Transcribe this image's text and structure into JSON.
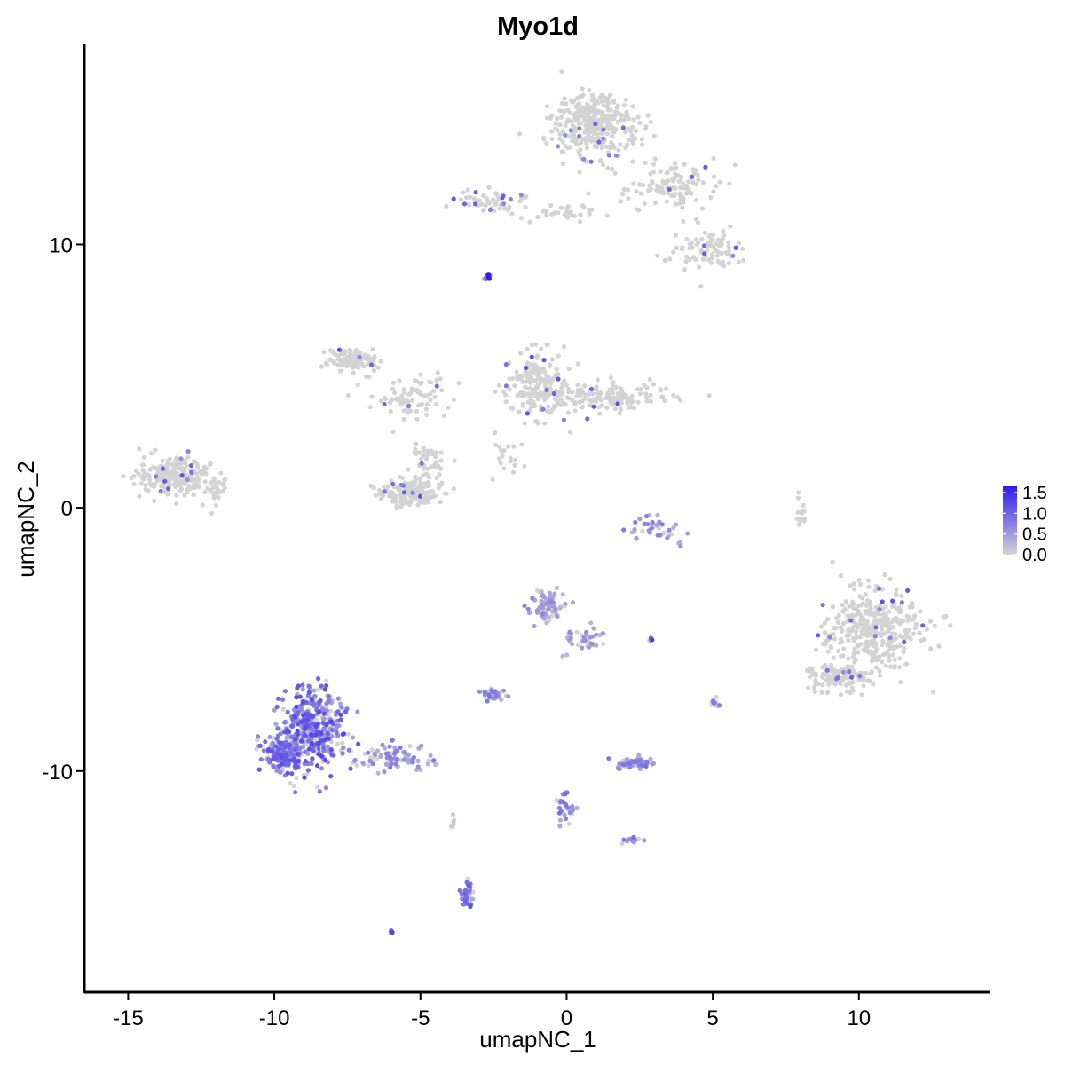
{
  "chart_data": {
    "type": "scatter",
    "title": "Myo1d",
    "xlabel": "umapNC_1",
    "ylabel": "umapNC_2",
    "xlim": [
      -16.5,
      14.5
    ],
    "ylim": [
      -18.4,
      17.6
    ],
    "x_ticks": [
      -15,
      -10,
      -5,
      0,
      5,
      10
    ],
    "x_tick_labels": [
      "-15",
      "-10",
      "-5",
      "0",
      "5",
      "10"
    ],
    "y_ticks": [
      -10,
      0,
      10
    ],
    "y_tick_labels": [
      "-10",
      "0",
      "10"
    ],
    "grid": false,
    "legend": {
      "position": "right",
      "type": "colorbar",
      "ticks": [
        0.0,
        0.5,
        1.0,
        1.5
      ],
      "labels": [
        "0.0",
        "0.5",
        "1.0",
        "1.5"
      ],
      "range": [
        0,
        1.65
      ]
    },
    "color_low": "#d3d3d3",
    "color_high": "#2f1bf0",
    "clusters": [
      {
        "center": [
          1.0,
          14.6
        ],
        "spread": [
          1.2,
          1.1
        ],
        "n": 330,
        "expr": 0.02
      },
      {
        "center": [
          3.6,
          12.3
        ],
        "spread": [
          1.2,
          0.9
        ],
        "n": 110,
        "expr": 0.02
      },
      {
        "center": [
          4.9,
          9.8
        ],
        "spread": [
          1.0,
          0.6
        ],
        "n": 90,
        "expr": 0.02
      },
      {
        "center": [
          -2.6,
          11.6
        ],
        "spread": [
          1.3,
          0.3
        ],
        "n": 50,
        "expr": 0.03
      },
      {
        "center": [
          -0.2,
          11.2
        ],
        "spread": [
          1.1,
          0.25
        ],
        "n": 35,
        "expr": 0.02
      },
      {
        "center": [
          -2.75,
          8.7
        ],
        "spread": [
          0.15,
          0.1
        ],
        "n": 10,
        "expr": 1.3
      },
      {
        "center": [
          -7.2,
          5.6
        ],
        "spread": [
          0.8,
          0.4
        ],
        "n": 110,
        "expr": 0.02
      },
      {
        "center": [
          -5.3,
          4.2
        ],
        "spread": [
          1.3,
          0.7
        ],
        "n": 80,
        "expr": 0.02
      },
      {
        "center": [
          -5.3,
          0.6
        ],
        "spread": [
          1.0,
          0.45
        ],
        "n": 150,
        "expr": 0.02
      },
      {
        "center": [
          -4.8,
          1.6
        ],
        "spread": [
          0.5,
          0.7
        ],
        "n": 50,
        "expr": 0.02
      },
      {
        "center": [
          -1.0,
          4.6
        ],
        "spread": [
          0.9,
          1.0
        ],
        "n": 200,
        "expr": 0.03
      },
      {
        "center": [
          1.5,
          4.2
        ],
        "spread": [
          1.5,
          0.45
        ],
        "n": 150,
        "expr": 0.03
      },
      {
        "center": [
          -2.2,
          2.0
        ],
        "spread": [
          0.5,
          0.8
        ],
        "n": 20,
        "expr": 0.02
      },
      {
        "center": [
          -13.4,
          1.2
        ],
        "spread": [
          1.0,
          0.6
        ],
        "n": 230,
        "expr": 0.03
      },
      {
        "center": [
          -12.0,
          0.6
        ],
        "spread": [
          0.4,
          0.5
        ],
        "n": 30,
        "expr": 0.02
      },
      {
        "center": [
          10.4,
          -4.6
        ],
        "spread": [
          1.5,
          1.3
        ],
        "n": 360,
        "expr": 0.02
      },
      {
        "center": [
          9.4,
          -6.4
        ],
        "spread": [
          1.1,
          0.5
        ],
        "n": 120,
        "expr": 0.04
      },
      {
        "center": [
          8.0,
          -0.3
        ],
        "spread": [
          0.15,
          0.6
        ],
        "n": 15,
        "expr": 0.0
      },
      {
        "center": [
          -8.7,
          -8.4
        ],
        "spread": [
          0.9,
          1.2
        ],
        "n": 420,
        "expr": 0.8
      },
      {
        "center": [
          -9.7,
          -9.3
        ],
        "spread": [
          0.6,
          0.6
        ],
        "n": 180,
        "expr": 0.75
      },
      {
        "center": [
          -6.0,
          -9.5
        ],
        "spread": [
          1.1,
          0.45
        ],
        "n": 90,
        "expr": 0.5
      },
      {
        "center": [
          -0.7,
          -3.7
        ],
        "spread": [
          0.5,
          0.5
        ],
        "n": 80,
        "expr": 0.45
      },
      {
        "center": [
          0.5,
          -5.0
        ],
        "spread": [
          0.6,
          0.5
        ],
        "n": 40,
        "expr": 0.4
      },
      {
        "center": [
          -2.5,
          -7.1
        ],
        "spread": [
          0.35,
          0.2
        ],
        "n": 30,
        "expr": 0.55
      },
      {
        "center": [
          2.3,
          -9.7
        ],
        "spread": [
          0.5,
          0.15
        ],
        "n": 70,
        "expr": 0.55
      },
      {
        "center": [
          3.0,
          -0.8
        ],
        "spread": [
          0.7,
          0.5
        ],
        "n": 40,
        "expr": 0.5
      },
      {
        "center": [
          0.0,
          -11.4
        ],
        "spread": [
          0.3,
          0.6
        ],
        "n": 30,
        "expr": 0.6
      },
      {
        "center": [
          2.3,
          -12.6
        ],
        "spread": [
          0.3,
          0.15
        ],
        "n": 14,
        "expr": 0.6
      },
      {
        "center": [
          -3.4,
          -14.7
        ],
        "spread": [
          0.25,
          0.5
        ],
        "n": 45,
        "expr": 0.75
      },
      {
        "center": [
          5.1,
          -7.4
        ],
        "spread": [
          0.15,
          0.25
        ],
        "n": 10,
        "expr": 0.9
      },
      {
        "center": [
          2.9,
          -5.0
        ],
        "spread": [
          0.12,
          0.05
        ],
        "n": 5,
        "expr": 1.0
      },
      {
        "center": [
          -6.0,
          -16.1
        ],
        "spread": [
          0.1,
          0.08
        ],
        "n": 5,
        "expr": 1.0
      },
      {
        "center": [
          -3.9,
          -12.0
        ],
        "spread": [
          0.1,
          0.3
        ],
        "n": 5,
        "expr": 0.1
      }
    ]
  }
}
